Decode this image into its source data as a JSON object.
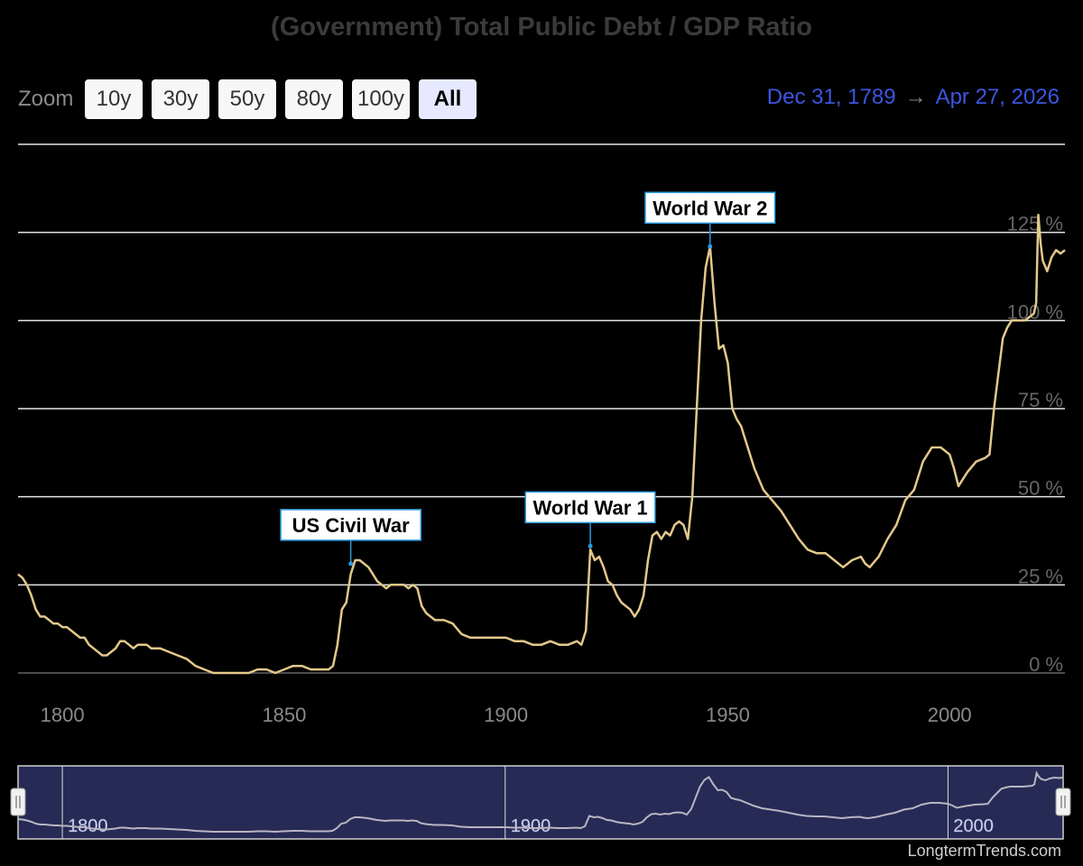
{
  "title": "(Government) Total Public Debt / GDP Ratio",
  "zoom": {
    "label": "Zoom",
    "buttons": [
      "10y",
      "30y",
      "50y",
      "80y",
      "100y",
      "All"
    ],
    "active": "All"
  },
  "range": {
    "from": "Dec 31, 1789",
    "arrow": "→",
    "to": "Apr 27, 2026"
  },
  "credit": "LongtermTrends.com",
  "colors": {
    "line": "#e3c88a",
    "annotation_border": "#2a9be0",
    "navigator_bg": "#262a55",
    "range_text": "#3d55e0"
  },
  "chart_data": {
    "type": "line",
    "title": "(Government) Total Public Debt / GDP Ratio",
    "xlabel": "",
    "ylabel": "",
    "xlim": [
      1790,
      2026
    ],
    "ylim": [
      0,
      150
    ],
    "x_ticks": [
      1800,
      1850,
      1900,
      1950,
      2000
    ],
    "x_tick_labels": [
      "1800",
      "1850",
      "1900",
      "1950",
      "2000"
    ],
    "y_ticks": [
      0,
      25,
      50,
      75,
      100,
      125
    ],
    "y_tick_labels": [
      "0 %",
      "25 %",
      "50 %",
      "75 %",
      "100 %",
      "125 %"
    ],
    "grid": true,
    "series": [
      {
        "x": [
          1790,
          1791,
          1792,
          1793,
          1794,
          1795,
          1796,
          1797,
          1798,
          1799,
          1800,
          1801,
          1802,
          1803,
          1804,
          1805,
          1806,
          1807,
          1808,
          1809,
          1810,
          1811,
          1812,
          1813,
          1814,
          1815,
          1816,
          1817,
          1818,
          1819,
          1820,
          1822,
          1824,
          1826,
          1828,
          1830,
          1832,
          1834,
          1836,
          1838,
          1840,
          1842,
          1844,
          1846,
          1848,
          1850,
          1852,
          1854,
          1856,
          1858,
          1860,
          1861,
          1862,
          1863,
          1864,
          1865,
          1866,
          1867,
          1868,
          1869,
          1870,
          1871,
          1872,
          1873,
          1874,
          1875,
          1876,
          1877,
          1878,
          1879,
          1880,
          1881,
          1882,
          1884,
          1886,
          1888,
          1890,
          1892,
          1894,
          1896,
          1898,
          1900,
          1902,
          1904,
          1906,
          1908,
          1910,
          1912,
          1914,
          1916,
          1917,
          1918,
          1919,
          1920,
          1921,
          1922,
          1923,
          1924,
          1925,
          1926,
          1927,
          1928,
          1929,
          1930,
          1931,
          1932,
          1933,
          1934,
          1935,
          1936,
          1937,
          1938,
          1939,
          1940,
          1941,
          1942,
          1943,
          1944,
          1945,
          1946,
          1947,
          1948,
          1949,
          1950,
          1951,
          1952,
          1953,
          1954,
          1955,
          1956,
          1958,
          1960,
          1962,
          1964,
          1966,
          1968,
          1970,
          1972,
          1974,
          1976,
          1978,
          1980,
          1981,
          1982,
          1984,
          1986,
          1988,
          1990,
          1992,
          1994,
          1996,
          1998,
          2000,
          2001,
          2002,
          2004,
          2006,
          2008,
          2009,
          2010,
          2011,
          2012,
          2013,
          2014,
          2015,
          2016,
          2017,
          2018,
          2019,
          2019.5,
          2020,
          2020.5,
          2021,
          2022,
          2023,
          2024,
          2025,
          2026
        ],
        "values": [
          28,
          27,
          25,
          22,
          18,
          16,
          16,
          15,
          14,
          14,
          13,
          13,
          12,
          11,
          10,
          10,
          8,
          7,
          6,
          5,
          5,
          6,
          7,
          9,
          9,
          8,
          7,
          8,
          8,
          8,
          7,
          7,
          6,
          5,
          4,
          2,
          1,
          0,
          0,
          0,
          0,
          0,
          1,
          1,
          0,
          1,
          2,
          2,
          1,
          1,
          1,
          2,
          8,
          18,
          20,
          28,
          32,
          32,
          31,
          30,
          28,
          26,
          25,
          24,
          25,
          25,
          25,
          25,
          24,
          25,
          24,
          19,
          17,
          15,
          15,
          14,
          11,
          10,
          10,
          10,
          10,
          10,
          9,
          9,
          8,
          8,
          9,
          8,
          8,
          9,
          8,
          12,
          35,
          32,
          33,
          30,
          26,
          25,
          22,
          20,
          19,
          18,
          16,
          18,
          22,
          32,
          39,
          40,
          38,
          40,
          39,
          42,
          43,
          42,
          38,
          50,
          75,
          100,
          115,
          121,
          105,
          92,
          93,
          88,
          75,
          72,
          70,
          66,
          62,
          58,
          52,
          49,
          46,
          42,
          38,
          35,
          34,
          34,
          32,
          30,
          32,
          33,
          31,
          30,
          33,
          38,
          42,
          49,
          52,
          60,
          64,
          64,
          62,
          58,
          53,
          57,
          60,
          61,
          62,
          75,
          85,
          95,
          98,
          100,
          100,
          100,
          100,
          101,
          102,
          105,
          130,
          122,
          117,
          114,
          118,
          120,
          119,
          120
        ]
      }
    ],
    "annotations": [
      {
        "label": "US Civil War",
        "x": 1865,
        "y": 31
      },
      {
        "label": "World War 1",
        "x": 1919,
        "y": 36
      },
      {
        "label": "World War 2",
        "x": 1946,
        "y": 121
      }
    ],
    "navigator": {
      "tick_labels": [
        "1800",
        "1900",
        "2000"
      ],
      "ticks": [
        1800,
        1900,
        2000
      ]
    }
  }
}
